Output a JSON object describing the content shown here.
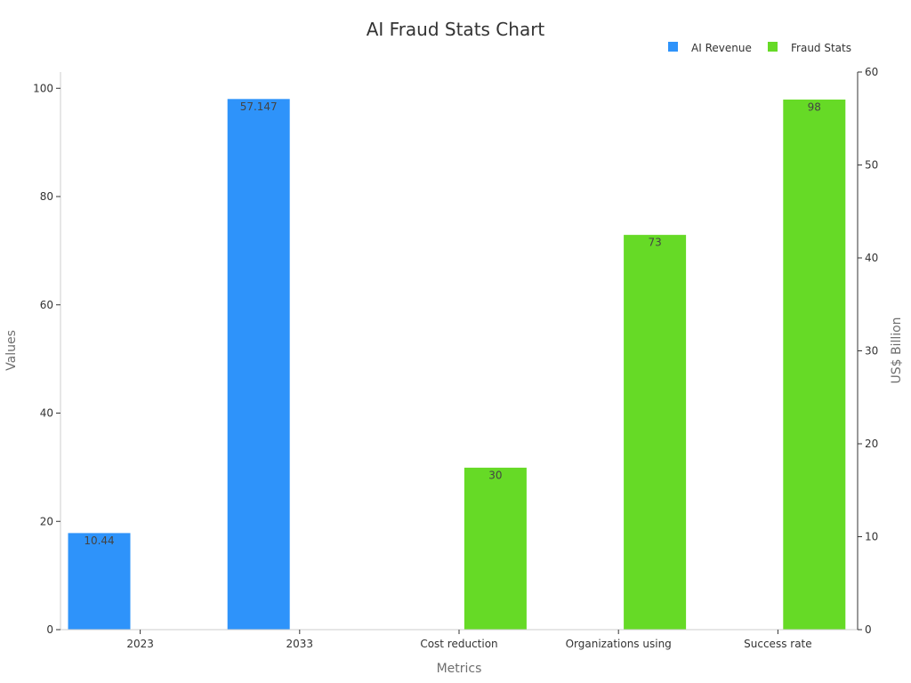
{
  "chart_data": {
    "type": "bar",
    "title": "AI Fraud Stats Chart",
    "xlabel": "Metrics",
    "ylabel": "Values",
    "ylabel_right": "US$ Billion",
    "categories": [
      "2023",
      "2033",
      "Cost reduction",
      "Organizations using",
      "Success rate"
    ],
    "ylim": [
      0,
      103
    ],
    "ylim_right": [
      0,
      60
    ],
    "yticks": [
      0,
      20,
      40,
      60,
      80,
      100
    ],
    "yticks_right": [
      0,
      10,
      20,
      30,
      40,
      50,
      60
    ],
    "legend_position": "top-right",
    "grid": false,
    "series": [
      {
        "name": "AI Revenue",
        "color": "#2e93fa",
        "axis": "right",
        "values": [
          10.44,
          57.147,
          null,
          null,
          null
        ],
        "labels": [
          "10.44",
          "57.147",
          null,
          null,
          null
        ]
      },
      {
        "name": "Fraud Stats",
        "color": "#66da26",
        "axis": "left",
        "values": [
          null,
          null,
          30,
          73,
          98
        ],
        "labels": [
          null,
          null,
          "30",
          "73",
          "98"
        ]
      }
    ]
  }
}
